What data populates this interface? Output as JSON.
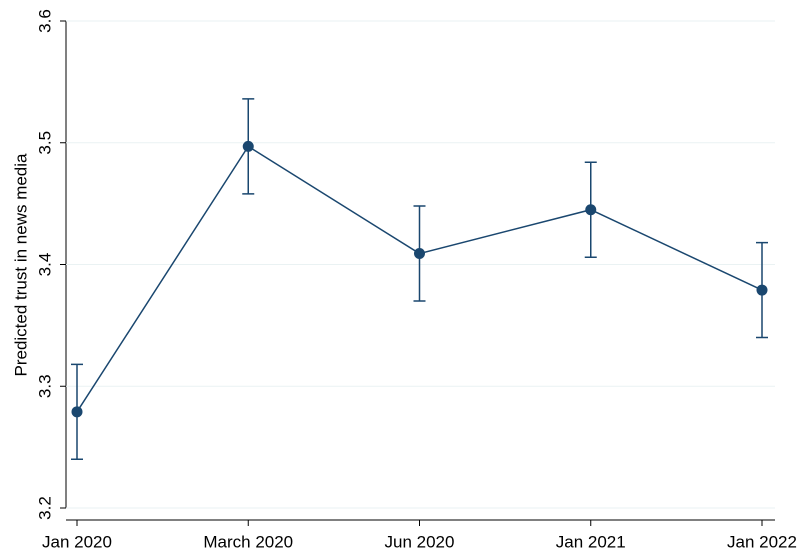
{
  "chart_data": {
    "type": "line",
    "y_label": "Predicted trust in news media",
    "categories": [
      "Jan 2020",
      "March 2020",
      "Jun 2020",
      "Jan 2021",
      "Jan 2022"
    ],
    "series": [
      {
        "color": "#1a476f",
        "values": [
          3.279,
          3.497,
          3.409,
          3.445,
          3.379
        ],
        "errors": [
          0.039,
          0.039,
          0.039,
          0.039,
          0.039
        ]
      }
    ],
    "ylim": [
      3.2,
      3.6
    ],
    "yticks": [
      3.2,
      3.3,
      3.4,
      3.5,
      3.6
    ],
    "grid": true
  }
}
